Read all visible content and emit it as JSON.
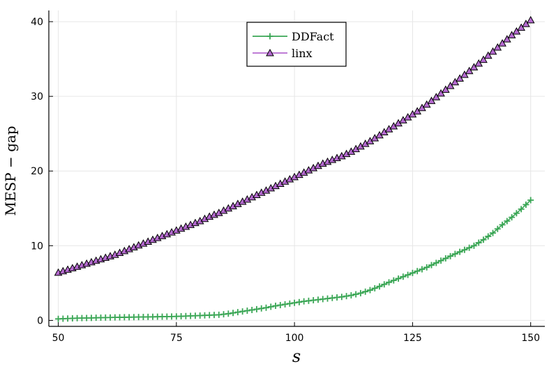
{
  "chart_data": {
    "type": "line",
    "title": "",
    "xlabel": "s",
    "ylabel": "MESP − gap",
    "xlim": [
      48,
      153
    ],
    "ylim": [
      -0.8,
      41.5
    ],
    "xticks": [
      50,
      75,
      100,
      125,
      150
    ],
    "yticks": [
      0,
      10,
      20,
      30,
      40
    ],
    "grid": true,
    "legend_position": "top-center",
    "series": [
      {
        "name": "DDFact",
        "color": "#3aa655",
        "marker": "plus",
        "x": [
          50,
          52,
          54,
          56,
          58,
          60,
          62,
          64,
          66,
          68,
          70,
          72,
          74,
          76,
          78,
          80,
          82,
          84,
          86,
          88,
          90,
          92,
          94,
          96,
          98,
          100,
          102,
          104,
          106,
          108,
          110,
          112,
          114,
          116,
          118,
          120,
          122,
          124,
          126,
          128,
          130,
          132,
          134,
          136,
          138,
          140,
          142,
          144,
          146,
          148,
          150
        ],
        "values": [
          0.2,
          0.25,
          0.3,
          0.32,
          0.35,
          0.38,
          0.4,
          0.42,
          0.44,
          0.46,
          0.48,
          0.5,
          0.52,
          0.55,
          0.6,
          0.65,
          0.7,
          0.75,
          0.9,
          1.1,
          1.3,
          1.5,
          1.7,
          1.95,
          2.15,
          2.35,
          2.55,
          2.7,
          2.85,
          3.0,
          3.15,
          3.35,
          3.65,
          4.05,
          4.55,
          5.1,
          5.6,
          6.1,
          6.6,
          7.1,
          7.7,
          8.3,
          8.9,
          9.45,
          10.0,
          10.8,
          11.7,
          12.8,
          13.8,
          14.9,
          16.1
        ]
      },
      {
        "name": "linx",
        "color": "#b56ad0",
        "marker": "triangle",
        "x": [
          50,
          52,
          54,
          56,
          58,
          60,
          62,
          64,
          66,
          68,
          70,
          72,
          74,
          76,
          78,
          80,
          82,
          84,
          86,
          88,
          90,
          92,
          94,
          96,
          98,
          100,
          102,
          104,
          106,
          108,
          110,
          112,
          114,
          116,
          118,
          120,
          122,
          124,
          126,
          128,
          130,
          132,
          134,
          136,
          138,
          140,
          142,
          144,
          146,
          148,
          150
        ],
        "values": [
          6.4,
          6.8,
          7.2,
          7.6,
          8.0,
          8.4,
          8.8,
          9.3,
          9.8,
          10.3,
          10.8,
          11.3,
          11.8,
          12.3,
          12.8,
          13.3,
          13.9,
          14.4,
          15.0,
          15.6,
          16.2,
          16.8,
          17.4,
          18.0,
          18.6,
          19.2,
          19.8,
          20.4,
          21.0,
          21.5,
          22.0,
          22.6,
          23.3,
          24.0,
          24.8,
          25.6,
          26.4,
          27.2,
          28.0,
          28.9,
          29.9,
          30.9,
          31.9,
          32.9,
          33.9,
          34.9,
          36.0,
          37.1,
          38.2,
          39.2,
          40.2
        ]
      }
    ]
  }
}
